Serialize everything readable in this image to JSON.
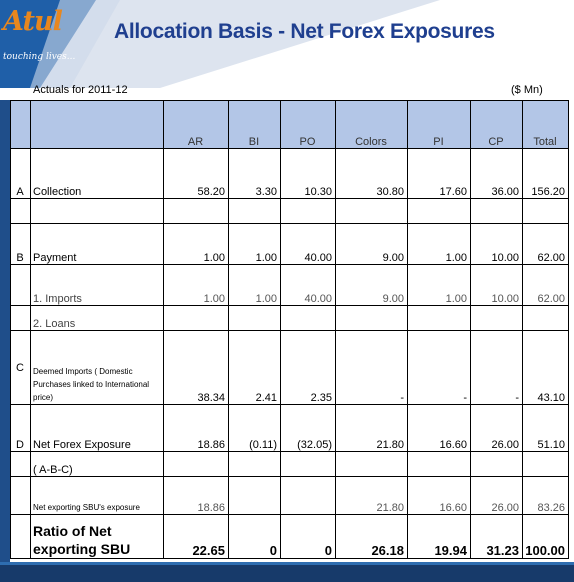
{
  "header": {
    "logo_text": "Atul",
    "tagline": "touching lives...",
    "title": "Allocation Basis - Net Forex Exposures"
  },
  "table": {
    "caption": "Actuals for 2011-12",
    "unit": "($ Mn)",
    "columns": [
      "AR",
      "BI",
      "PO",
      "Colors",
      "PI",
      "CP",
      "Total"
    ],
    "rows": [
      {
        "code": "A",
        "label": "Collection",
        "values": [
          "58.20",
          "3.30",
          "10.30",
          "30.80",
          "17.60",
          "36.00",
          "156.20"
        ]
      },
      {
        "code": "B",
        "label": "Payment",
        "values": [
          "1.00",
          "1.00",
          "40.00",
          "9.00",
          "1.00",
          "10.00",
          "62.00"
        ]
      },
      {
        "code": "",
        "label": "1. Imports",
        "values": [
          "1.00",
          "1.00",
          "40.00",
          "9.00",
          "1.00",
          "10.00",
          "62.00"
        ]
      },
      {
        "code": "",
        "label": "2. Loans",
        "values": [
          "",
          "",
          "",
          "",
          "",
          "",
          ""
        ]
      },
      {
        "code": "C",
        "label": "Deemed Imports ( Domestic Purchases linked to International price)",
        "values": [
          "38.34",
          "2.41",
          "2.35",
          "-",
          "-",
          "-",
          "43.10"
        ]
      },
      {
        "code": "D",
        "label": "Net Forex Exposure",
        "values": [
          "18.86",
          "(0.11)",
          "(32.05)",
          "21.80",
          "16.60",
          "26.00",
          "51.10"
        ]
      },
      {
        "code": "",
        "label": "( A-B-C)",
        "values": [
          "",
          "",
          "",
          "",
          "",
          "",
          ""
        ]
      },
      {
        "code": "",
        "label": "Net exporting SBU's exposure",
        "values": [
          "18.86",
          "",
          "",
          "21.80",
          "16.60",
          "26.00",
          "83.26"
        ]
      },
      {
        "code": "",
        "label": "Ratio of Net exporting SBU",
        "values": [
          "22.65",
          "0",
          "0",
          "26.18",
          "19.94",
          "31.23",
          "100.00"
        ]
      }
    ]
  }
}
